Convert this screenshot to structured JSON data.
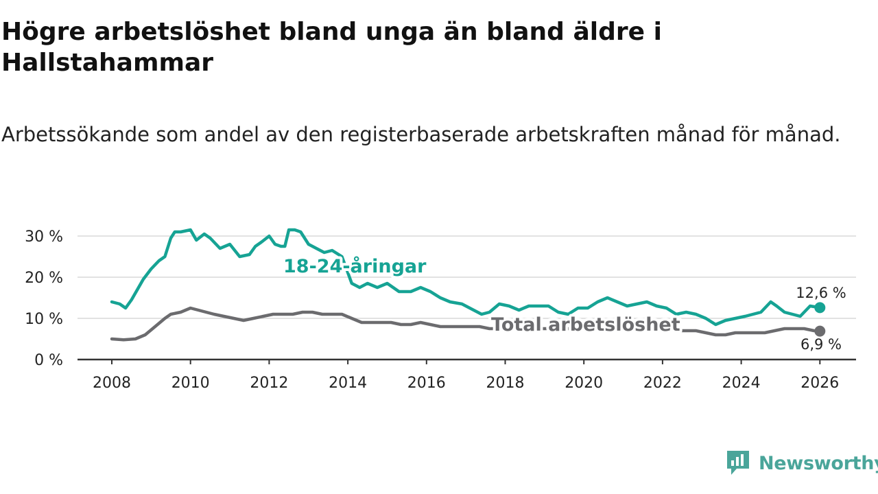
{
  "title": "Högre arbetslöshet bland unga än bland äldre i Hallstahammar",
  "subtitle": "Arbetssökande som andel av den registerbaserade arbetskraften månad för månad.",
  "brand": {
    "name": "Newsworthy",
    "color": "#4aa59a"
  },
  "colors": {
    "youth": "#16a394",
    "total": "#6b6b6e",
    "grid": "#d9d9d9",
    "axis": "#333333"
  },
  "chart_data": {
    "type": "line",
    "xlabel": "",
    "ylabel": "",
    "xlim": [
      2007.5,
      2026.9
    ],
    "ylim": [
      0,
      33
    ],
    "x_ticks": [
      2008,
      2010,
      2012,
      2014,
      2016,
      2018,
      2020,
      2022,
      2024,
      2026
    ],
    "x_tick_labels": [
      "2008",
      "2010",
      "2012",
      "2014",
      "2016",
      "2018",
      "2020",
      "2022",
      "2024",
      "2026"
    ],
    "y_ticks": [
      0,
      10,
      20,
      30
    ],
    "y_tick_labels": [
      "0 %",
      "10 %",
      "20 %",
      "30 %"
    ],
    "series": [
      {
        "name": "18-24-åringar",
        "label": "18-24-åringar",
        "end_label": "12,6 %",
        "x": [
          2008.0,
          2008.2,
          2008.35,
          2008.5,
          2008.65,
          2008.8,
          2009.0,
          2009.2,
          2009.35,
          2009.5,
          2009.6,
          2009.75,
          2010.0,
          2010.15,
          2010.35,
          2010.5,
          2010.75,
          2011.0,
          2011.25,
          2011.5,
          2011.65,
          2011.8,
          2012.0,
          2012.15,
          2012.3,
          2012.4,
          2012.5,
          2012.65,
          2012.8,
          2013.0,
          2013.2,
          2013.4,
          2013.6,
          2013.85,
          2014.1,
          2014.3,
          2014.5,
          2014.75,
          2015.0,
          2015.3,
          2015.6,
          2015.85,
          2016.1,
          2016.35,
          2016.6,
          2016.9,
          2017.2,
          2017.4,
          2017.6,
          2017.85,
          2018.1,
          2018.35,
          2018.6,
          2018.85,
          2019.1,
          2019.35,
          2019.6,
          2019.85,
          2020.1,
          2020.35,
          2020.6,
          2020.85,
          2021.1,
          2021.35,
          2021.6,
          2021.85,
          2022.1,
          2022.35,
          2022.6,
          2022.85,
          2023.1,
          2023.35,
          2023.6,
          2023.85,
          2024.1,
          2024.3,
          2024.5,
          2024.75,
          2024.9,
          2025.1,
          2025.3,
          2025.5,
          2025.75,
          2026.0
        ],
        "values": [
          14.0,
          13.5,
          12.5,
          14.5,
          17.0,
          19.5,
          22.0,
          24.0,
          25.0,
          29.5,
          31.0,
          31.0,
          31.5,
          29.0,
          30.5,
          29.5,
          27.0,
          28.0,
          25.0,
          25.5,
          27.5,
          28.5,
          30.0,
          28.0,
          27.5,
          27.5,
          31.5,
          31.5,
          31.0,
          28.0,
          27.0,
          26.0,
          26.5,
          25.0,
          18.5,
          17.5,
          18.5,
          17.5,
          18.5,
          16.5,
          16.5,
          17.5,
          16.5,
          15.0,
          14.0,
          13.5,
          12.0,
          11.0,
          11.5,
          13.5,
          13.0,
          12.0,
          13.0,
          13.0,
          13.0,
          11.5,
          11.0,
          12.5,
          12.5,
          14.0,
          15.0,
          14.0,
          13.0,
          13.5,
          14.0,
          13.0,
          12.5,
          11.0,
          11.5,
          11.0,
          10.0,
          8.5,
          9.5,
          10.0,
          10.5,
          11.0,
          11.5,
          14.0,
          13.0,
          11.5,
          11.0,
          10.5,
          13.0,
          12.6
        ]
      },
      {
        "name": "Total arbetslöshet",
        "label": "Total arbetslöshet",
        "end_label": "6,9 %",
        "x": [
          2008.0,
          2008.3,
          2008.6,
          2008.85,
          2009.1,
          2009.35,
          2009.5,
          2009.75,
          2010.0,
          2010.2,
          2010.4,
          2010.6,
          2010.85,
          2011.1,
          2011.35,
          2011.6,
          2011.85,
          2012.1,
          2012.35,
          2012.6,
          2012.85,
          2013.1,
          2013.35,
          2013.6,
          2013.85,
          2014.1,
          2014.35,
          2014.6,
          2014.85,
          2015.1,
          2015.35,
          2015.6,
          2015.85,
          2016.1,
          2016.35,
          2016.6,
          2016.85,
          2017.1,
          2017.35,
          2017.6,
          2017.85,
          2018.1,
          2018.35,
          2018.6,
          2018.85,
          2019.1,
          2019.35,
          2019.6,
          2019.85,
          2020.1,
          2020.35,
          2020.6,
          2020.85,
          2021.1,
          2021.35,
          2021.6,
          2021.85,
          2022.1,
          2022.35,
          2022.6,
          2022.85,
          2023.1,
          2023.35,
          2023.6,
          2023.85,
          2024.1,
          2024.35,
          2024.6,
          2024.85,
          2025.1,
          2025.35,
          2025.6,
          2025.85,
          2026.0
        ],
        "values": [
          5.0,
          4.8,
          5.0,
          6.0,
          8.0,
          10.0,
          11.0,
          11.5,
          12.5,
          12.0,
          11.5,
          11.0,
          10.5,
          10.0,
          9.5,
          10.0,
          10.5,
          11.0,
          11.0,
          11.0,
          11.5,
          11.5,
          11.0,
          11.0,
          11.0,
          10.0,
          9.0,
          9.0,
          9.0,
          9.0,
          8.5,
          8.5,
          9.0,
          8.5,
          8.0,
          8.0,
          8.0,
          8.0,
          8.0,
          7.5,
          7.5,
          7.5,
          7.5,
          7.5,
          7.5,
          7.5,
          7.5,
          7.5,
          7.5,
          7.5,
          7.5,
          7.5,
          7.5,
          7.5,
          7.5,
          7.5,
          7.5,
          7.5,
          7.0,
          7.0,
          7.0,
          6.5,
          6.0,
          6.0,
          6.5,
          6.5,
          6.5,
          6.5,
          7.0,
          7.5,
          7.5,
          7.5,
          7.0,
          6.9
        ]
      }
    ]
  }
}
